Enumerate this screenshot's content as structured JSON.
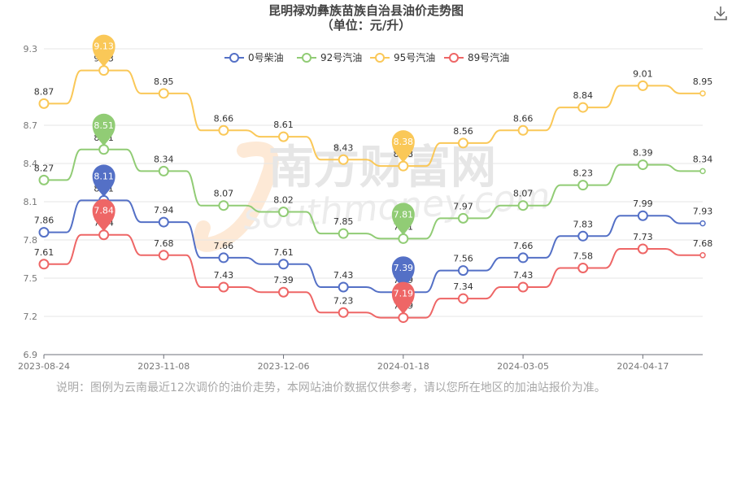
{
  "title_line1": "昆明禄劝彝族苗族自治县油价走势图",
  "title_line2": "（单位：元/升）",
  "watermark": {
    "cn": "南方财富网",
    "en": "southmoney.com"
  },
  "note": "说明：图例为云南最近12次调价的油价走势，本网站油价数据仅供参考，请以您所在地区的加油站报价为准。",
  "download_icon": "download-icon",
  "chart_data": {
    "type": "line",
    "title": "昆明禄劝彝族苗族自治县油价走势图",
    "subtitle": "（单位：元/升）",
    "ylim": [
      6.9,
      9.3
    ],
    "yticks": [
      "6.9",
      "7.2",
      "7.5",
      "7.8",
      "8.1",
      "8.4",
      "8.7",
      "9.3"
    ],
    "xticks": [
      {
        "index": 0,
        "label": "2023-08-24"
      },
      {
        "index": 2,
        "label": "2023-11-08"
      },
      {
        "index": 4,
        "label": "2023-12-06"
      },
      {
        "index": 6,
        "label": "2024-01-18"
      },
      {
        "index": 8,
        "label": "2024-03-05"
      },
      {
        "index": 10,
        "label": "2024-04-17"
      }
    ],
    "point_count": 12,
    "grid": true,
    "legend_position": "top",
    "series": [
      {
        "name": "0号柴油",
        "color": "#5470c6",
        "values": [
          7.86,
          8.11,
          7.94,
          7.66,
          7.61,
          7.43,
          7.39,
          7.56,
          7.66,
          7.83,
          7.99,
          7.93
        ],
        "max_index": 1,
        "min_index": 6
      },
      {
        "name": "92号汽油",
        "color": "#91cc75",
        "values": [
          8.27,
          8.51,
          8.34,
          8.07,
          8.02,
          7.85,
          7.81,
          7.97,
          8.07,
          8.23,
          8.39,
          8.34
        ],
        "max_index": 1,
        "min_index": 6
      },
      {
        "name": "95号汽油",
        "color": "#fac858",
        "values": [
          8.87,
          9.13,
          8.95,
          8.66,
          8.61,
          8.43,
          8.38,
          8.56,
          8.66,
          8.84,
          9.01,
          8.95
        ],
        "max_index": 1,
        "min_index": 6
      },
      {
        "name": "89号汽油",
        "color": "#ee6666",
        "values": [
          7.61,
          7.84,
          7.68,
          7.43,
          7.39,
          7.23,
          7.19,
          7.34,
          7.43,
          7.58,
          7.73,
          7.68
        ],
        "max_index": 1,
        "min_index": 6
      }
    ]
  }
}
